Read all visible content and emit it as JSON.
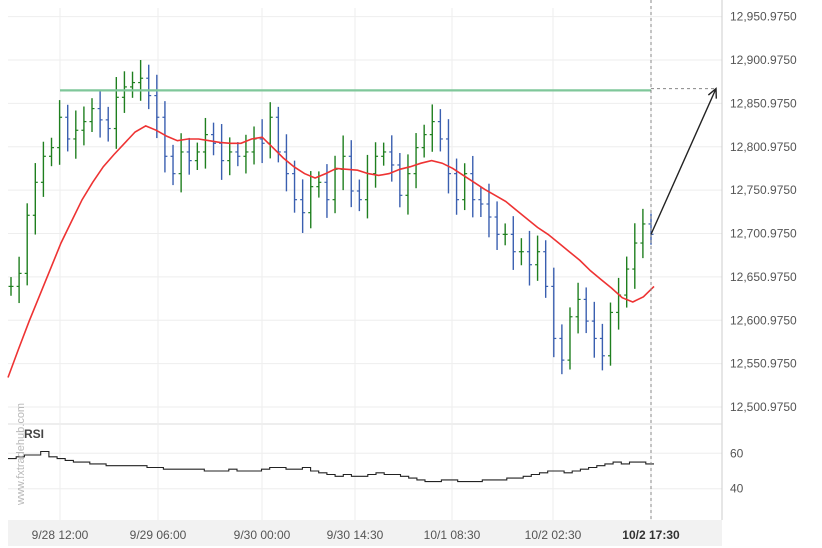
{
  "chart_data": {
    "type": "line",
    "watermark": "www.fxtradehub.com",
    "indicator_label": "RSI",
    "colors": {
      "bars": "#1f7f1f",
      "bars_down": "#3a5fb0",
      "moving_average": "#ee3333",
      "resistance": "#7fc79a",
      "rsi": "#222222",
      "forecast": "#222222",
      "grid": "#eeeeee"
    },
    "price_axis": {
      "ticks": [
        "12,950.9750",
        "12,900.9750",
        "12,850.9750",
        "12,800.9750",
        "12,750.9750",
        "12,700.9750",
        "12,650.9750",
        "12,600.9750",
        "12,550.9750",
        "12,500.9750"
      ],
      "ylim": [
        12485.975,
        12960.975
      ]
    },
    "rsi_axis": {
      "ticks": [
        "60",
        "40"
      ],
      "ylim": [
        28,
        72
      ]
    },
    "time_axis": {
      "labels": [
        "9/28 12:00",
        "9/29 06:00",
        "9/30 00:00",
        "9/30 14:30",
        "10/1 08:30",
        "10/2 02:30",
        "10/2 17:30"
      ],
      "highlight_label": "10/2 17:30"
    },
    "resistance_level": 12866,
    "forecast_target": 12868,
    "close_price": [
      12640,
      12655,
      12722,
      12760,
      12790,
      12800,
      12835,
      12810,
      12820,
      12830,
      12845,
      12832,
      12822,
      12858,
      12870,
      12875,
      12880,
      12860,
      12835,
      12790,
      12770,
      12795,
      12785,
      12795,
      12815,
      12805,
      12785,
      12795,
      12790,
      12795,
      12810,
      12805,
      12835,
      12795,
      12770,
      12740,
      12725,
      12755,
      12760,
      12740,
      12775,
      12790,
      12750,
      12740,
      12770,
      12790,
      12795,
      12780,
      12745,
      12770,
      12800,
      12815,
      12830,
      12810,
      12770,
      12740,
      12770,
      12740,
      12735,
      12720,
      12700,
      12700,
      12680,
      12680,
      12665,
      12680,
      12640,
      12580,
      12555,
      12605,
      12625,
      12600,
      12580,
      12560,
      12610,
      12630,
      12660,
      12690,
      12712,
      12700
    ],
    "moving_average": [
      12535,
      12568,
      12600,
      12630,
      12660,
      12690,
      12715,
      12740,
      12760,
      12778,
      12792,
      12805,
      12818,
      12825,
      12820,
      12813,
      12808,
      12810,
      12810,
      12808,
      12806,
      12805,
      12805,
      12810,
      12812,
      12800,
      12788,
      12778,
      12770,
      12765,
      12770,
      12776,
      12775,
      12774,
      12770,
      12768,
      12770,
      12775,
      12778,
      12782,
      12785,
      12782,
      12776,
      12768,
      12760,
      12752,
      12745,
      12738,
      12728,
      12718,
      12708,
      12700,
      12690,
      12680,
      12670,
      12658,
      12648,
      12638,
      12627,
      12622,
      12628,
      12640
    ],
    "rsi": [
      57,
      58,
      59,
      59,
      61,
      58,
      57,
      56,
      55,
      55,
      54,
      54,
      53,
      53,
      53,
      53,
      53,
      52,
      52,
      51,
      51,
      51,
      51,
      51,
      50,
      50,
      50,
      51,
      50,
      50,
      50,
      51,
      52,
      52,
      51,
      51,
      52,
      50,
      49,
      48,
      47,
      48,
      47,
      47,
      48,
      49,
      48,
      48,
      47,
      46,
      45,
      44,
      44,
      45,
      45,
      44,
      44,
      44,
      45,
      45,
      45,
      46,
      46,
      47,
      48,
      49,
      50,
      50,
      49,
      50,
      51,
      52,
      53,
      54,
      55,
      54,
      55,
      55,
      54,
      54
    ]
  }
}
